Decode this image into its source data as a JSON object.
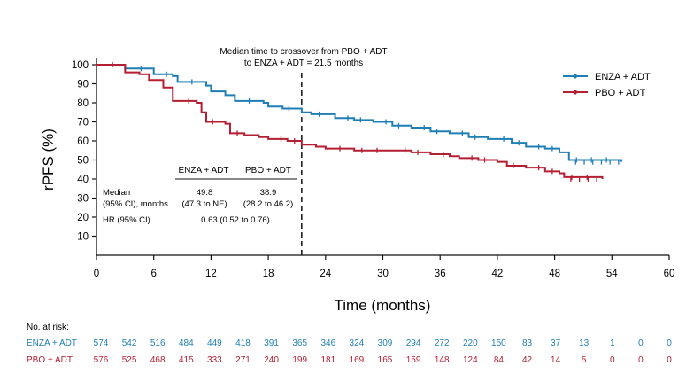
{
  "chart_data": {
    "type": "line",
    "subtype": "kaplan-meier",
    "ylabel": "rPFS (%)",
    "xlabel": "Time (months)",
    "xlim": [
      0,
      60
    ],
    "ylim": [
      0,
      100
    ],
    "xticks": [
      0,
      6,
      12,
      18,
      24,
      30,
      36,
      42,
      48,
      54,
      60
    ],
    "yticks": [
      10,
      20,
      30,
      40,
      50,
      60,
      70,
      80,
      90,
      100
    ],
    "legend_position": "top-right",
    "annotation": {
      "line1": "Median time to crossover from PBO + ADT",
      "line2": "to ENZA + ADT = 21.5 months",
      "x": 21.5
    },
    "series": [
      {
        "name": "ENZA + ADT",
        "color": "#1f7fb4",
        "points": [
          [
            0,
            100
          ],
          [
            2.5,
            100
          ],
          [
            3,
            98
          ],
          [
            5.5,
            98
          ],
          [
            6,
            95
          ],
          [
            8,
            94
          ],
          [
            8.5,
            91
          ],
          [
            11.5,
            89
          ],
          [
            12,
            86
          ],
          [
            13.5,
            84
          ],
          [
            14.5,
            81
          ],
          [
            17.5,
            80
          ],
          [
            18,
            78
          ],
          [
            19.5,
            77
          ],
          [
            21.5,
            75
          ],
          [
            22.5,
            74
          ],
          [
            25,
            72
          ],
          [
            27,
            71
          ],
          [
            29,
            70
          ],
          [
            31,
            68
          ],
          [
            33,
            67
          ],
          [
            35,
            65
          ],
          [
            37,
            64
          ],
          [
            39,
            62
          ],
          [
            41,
            61
          ],
          [
            43.5,
            59
          ],
          [
            45,
            57
          ],
          [
            47,
            56
          ],
          [
            48.5,
            54
          ],
          [
            49.5,
            50
          ],
          [
            55,
            49
          ]
        ]
      },
      {
        "name": "PBO + ADT",
        "color": "#b41f32",
        "points": [
          [
            0,
            100
          ],
          [
            2.5,
            100
          ],
          [
            3,
            96
          ],
          [
            4.5,
            95
          ],
          [
            5.5,
            92
          ],
          [
            7,
            88
          ],
          [
            8,
            81
          ],
          [
            10.5,
            80
          ],
          [
            11,
            75
          ],
          [
            11.5,
            70
          ],
          [
            13.5,
            69
          ],
          [
            14,
            64
          ],
          [
            15.5,
            63
          ],
          [
            17,
            62
          ],
          [
            18,
            61
          ],
          [
            20,
            60
          ],
          [
            21.5,
            58
          ],
          [
            23,
            57
          ],
          [
            24,
            56
          ],
          [
            27,
            55
          ],
          [
            31,
            55
          ],
          [
            33,
            54
          ],
          [
            35,
            53
          ],
          [
            37,
            52
          ],
          [
            38,
            51
          ],
          [
            40,
            50
          ],
          [
            42,
            49
          ],
          [
            43,
            47
          ],
          [
            45,
            46
          ],
          [
            47,
            44
          ],
          [
            48.5,
            43
          ],
          [
            49,
            41
          ],
          [
            53,
            40
          ]
        ]
      }
    ]
  },
  "median_table": {
    "headers": [
      "ENZA + ADT",
      "PBO + ADT"
    ],
    "median_label": "Median",
    "ci_label": "(95% CI), months",
    "median_values": [
      "49.8",
      "38.9"
    ],
    "ci_values": [
      "(47.3 to NE)",
      "(28.2 to 46.2)"
    ],
    "hr_label": "HR (95% CI)",
    "hr_value": "0.63 (0.52 to 0.76)"
  },
  "at_risk": {
    "title": "No. at risk:",
    "rows": [
      {
        "label": "ENZA + ADT",
        "color": "#1f7fb4",
        "values": [
          "574",
          "542",
          "516",
          "484",
          "449",
          "418",
          "391",
          "365",
          "346",
          "324",
          "309",
          "294",
          "272",
          "220",
          "150",
          "83",
          "37",
          "13",
          "1",
          "0",
          "0"
        ]
      },
      {
        "label": "PBO + ADT",
        "color": "#b41f32",
        "values": [
          "576",
          "525",
          "468",
          "415",
          "333",
          "271",
          "240",
          "199",
          "181",
          "169",
          "165",
          "159",
          "148",
          "124",
          "84",
          "42",
          "14",
          "5",
          "0",
          "0",
          "0"
        ]
      }
    ]
  }
}
